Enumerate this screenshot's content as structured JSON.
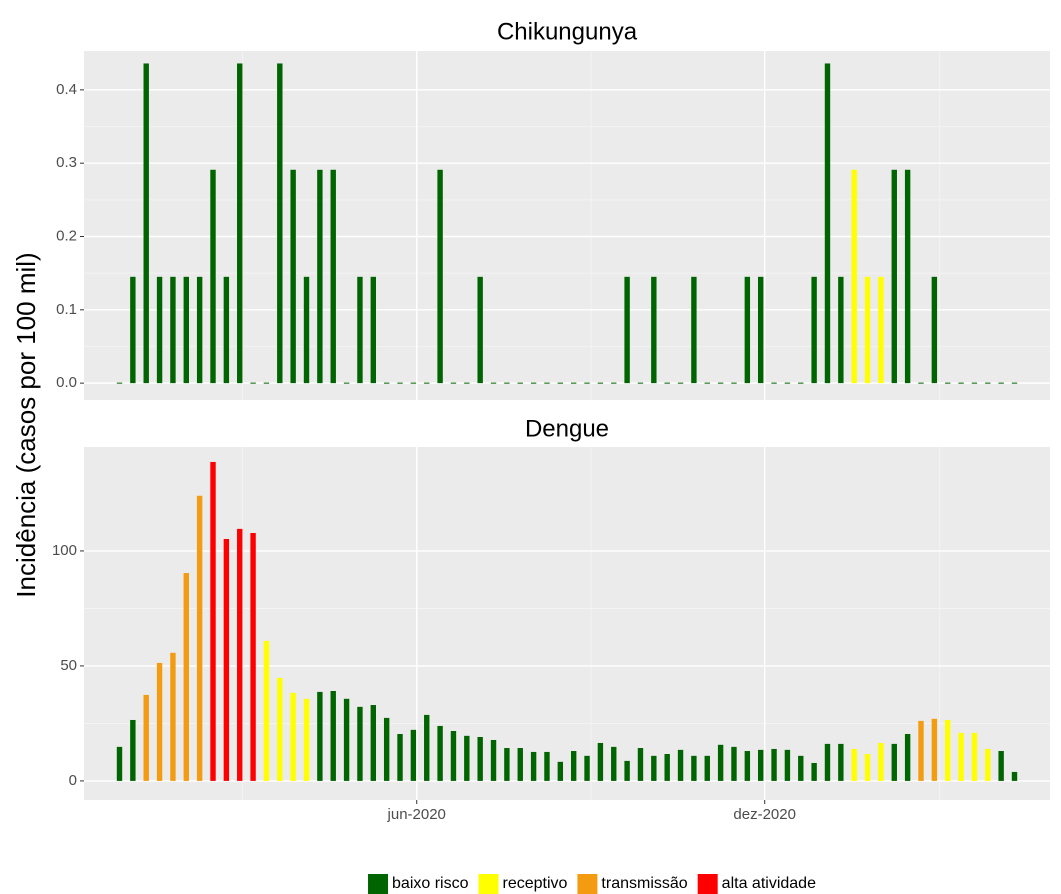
{
  "y_label": "Incidência (casos por 100 mil)",
  "legend": [
    {
      "name": "baixo risco",
      "color": "#006400"
    },
    {
      "name": "receptivo",
      "color": "#ffff00"
    },
    {
      "name": "transmissão",
      "color": "#f39c12"
    },
    {
      "name": "alta atividade",
      "color": "#ff0000"
    }
  ],
  "chart_data": [
    {
      "type": "bar",
      "title": "Chikungunya",
      "categories": [
        null,
        null,
        null,
        null,
        null,
        null,
        null,
        null,
        null,
        null,
        null,
        null,
        null,
        null,
        null,
        null,
        null,
        null,
        null,
        null,
        null,
        null,
        null,
        null,
        null,
        null,
        null,
        null,
        null,
        null,
        null,
        null,
        null,
        null,
        null,
        null,
        null,
        null,
        null,
        null,
        null,
        null,
        null,
        null,
        null,
        null,
        null,
        null,
        null,
        null,
        null,
        null,
        null,
        null,
        null,
        null,
        null,
        null,
        null,
        null,
        null,
        null,
        null,
        null,
        null,
        null,
        null,
        null
      ],
      "values": [
        0,
        0.145,
        0.436,
        0.145,
        0.145,
        0.145,
        0.145,
        0.291,
        0.145,
        0.436,
        0,
        0,
        0.436,
        0.291,
        0.145,
        0.291,
        0.291,
        0,
        0.145,
        0.145,
        0,
        0,
        0,
        0,
        0.291,
        0,
        0,
        0.145,
        0,
        0,
        0,
        0,
        0,
        0,
        0,
        0,
        0,
        0,
        0.145,
        0,
        0.145,
        0,
        0,
        0.145,
        0,
        0,
        0,
        0.145,
        0.145,
        0,
        0,
        0,
        0.145,
        0.436,
        0.145,
        0.291,
        0.145,
        0.145,
        0.291,
        0.291,
        0,
        0.145,
        0,
        0,
        0,
        0,
        0,
        0
      ],
      "colors": [
        "#006400",
        "#006400",
        "#006400",
        "#006400",
        "#006400",
        "#006400",
        "#006400",
        "#006400",
        "#006400",
        "#006400",
        "#006400",
        "#006400",
        "#006400",
        "#006400",
        "#006400",
        "#006400",
        "#006400",
        "#006400",
        "#006400",
        "#006400",
        "#006400",
        "#006400",
        "#006400",
        "#006400",
        "#006400",
        "#006400",
        "#006400",
        "#006400",
        "#006400",
        "#006400",
        "#006400",
        "#006400",
        "#006400",
        "#006400",
        "#006400",
        "#006400",
        "#006400",
        "#006400",
        "#006400",
        "#006400",
        "#006400",
        "#006400",
        "#006400",
        "#006400",
        "#006400",
        "#006400",
        "#006400",
        "#006400",
        "#006400",
        "#006400",
        "#006400",
        "#006400",
        "#006400",
        "#006400",
        "#006400",
        "#ffff00",
        "#ffff00",
        "#ffff00",
        "#006400",
        "#006400",
        "#006400",
        "#006400",
        "#006400",
        "#006400",
        "#006400",
        "#006400",
        "#006400",
        "#006400"
      ],
      "ylim": [
        -0.023,
        0.453
      ],
      "yticks": [
        {
          "value": 0,
          "label": "0.0"
        },
        0.1,
        0.2,
        0.3,
        0.4
      ],
      "grid": true
    },
    {
      "type": "bar",
      "title": "Dengue",
      "categories": [
        null,
        null,
        null,
        null,
        null,
        null,
        null,
        null,
        null,
        null,
        null,
        null,
        null,
        null,
        null,
        null,
        null,
        null,
        null,
        null,
        null,
        null,
        null,
        null,
        null,
        null,
        null,
        null,
        null,
        null,
        null,
        null,
        null,
        null,
        null,
        null,
        null,
        null,
        null,
        null,
        null,
        null,
        null,
        null,
        null,
        null,
        null,
        null,
        null,
        null,
        null,
        null,
        null,
        null,
        null,
        null,
        null,
        null,
        null,
        null,
        null,
        null,
        null,
        null,
        null,
        null,
        null,
        null
      ],
      "values": [
        14.8,
        26.5,
        37.4,
        51.3,
        55.7,
        90.4,
        124,
        138.7,
        105.2,
        109.6,
        107.8,
        60.9,
        44.8,
        38.3,
        35.7,
        38.7,
        39.1,
        35.7,
        32.2,
        33,
        27.4,
        20.4,
        22.2,
        28.7,
        23.9,
        21.7,
        19.6,
        19.1,
        17.8,
        14.3,
        14.3,
        12.6,
        12.6,
        8.3,
        13,
        10.9,
        16.5,
        14.8,
        8.7,
        14.3,
        10.9,
        11.7,
        13.5,
        10.9,
        10.9,
        15.7,
        14.8,
        13,
        13.5,
        13.9,
        13.5,
        10.9,
        7.8,
        16.1,
        16.1,
        13.9,
        11.7,
        16.5,
        16.1,
        20.4,
        26.1,
        27,
        26.5,
        20.9,
        20.9,
        13.9,
        13,
        3.9
      ],
      "colors": [
        "#006400",
        "#006400",
        "#f39c12",
        "#f39c12",
        "#f39c12",
        "#f39c12",
        "#f39c12",
        "#ff0000",
        "#ff0000",
        "#ff0000",
        "#ff0000",
        "#ffff00",
        "#ffff00",
        "#ffff00",
        "#ffff00",
        "#006400",
        "#006400",
        "#006400",
        "#006400",
        "#006400",
        "#006400",
        "#006400",
        "#006400",
        "#006400",
        "#006400",
        "#006400",
        "#006400",
        "#006400",
        "#006400",
        "#006400",
        "#006400",
        "#006400",
        "#006400",
        "#006400",
        "#006400",
        "#006400",
        "#006400",
        "#006400",
        "#006400",
        "#006400",
        "#006400",
        "#006400",
        "#006400",
        "#006400",
        "#006400",
        "#006400",
        "#006400",
        "#006400",
        "#006400",
        "#006400",
        "#006400",
        "#006400",
        "#006400",
        "#006400",
        "#006400",
        "#ffff00",
        "#ffff00",
        "#ffff00",
        "#006400",
        "#006400",
        "#f39c12",
        "#f39c12",
        "#ffff00",
        "#ffff00",
        "#ffff00",
        "#ffff00",
        "#006400",
        "#006400"
      ],
      "ylim": [
        -8.3,
        145.2
      ],
      "yticks": [
        0,
        50,
        100
      ],
      "xticks": [
        {
          "value": 22.25,
          "label": "jun-2020"
        },
        {
          "value": 48.3,
          "label": "dez-2020"
        }
      ],
      "x_minor_ticks": [
        9.2,
        35.3,
        61.4
      ],
      "grid": true
    }
  ]
}
